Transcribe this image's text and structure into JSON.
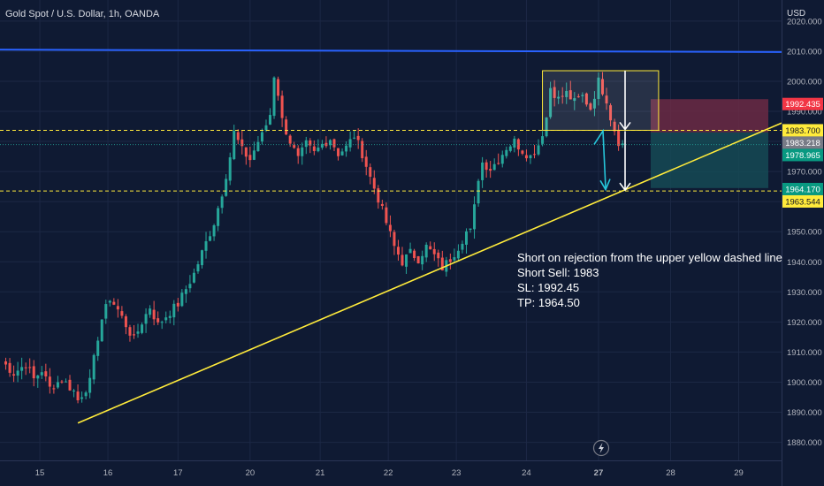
{
  "title": "Gold Spot / U.S. Dollar, 1h, OANDA",
  "currency": "USD",
  "colors": {
    "background": "#0f1a33",
    "grid": "#1c2845",
    "up_candle": "#26a69a",
    "down_candle": "#ef5350",
    "resistance_line": "#2962ff",
    "trend_line": "#ffeb3b",
    "dashed_line": "#ffeb3b",
    "arrow_white": "#ffffff",
    "arrow_teal": "#26c6da",
    "stop_zone": "#6b2a44",
    "target_zone": "#154a55",
    "axis_text": "#b2b5be"
  },
  "chart_data": {
    "type": "candlestick",
    "symbol": "Gold Spot / U.S. Dollar",
    "timeframe": "1h",
    "source": "OANDA",
    "ylim": [
      1874,
      2027
    ],
    "y_ticks": [
      1880,
      1890,
      1900,
      1910,
      1920,
      1930,
      1940,
      1950,
      1960,
      1970,
      1980,
      1990,
      2000,
      2010,
      2020
    ],
    "y_tick_labels": [
      "1880.000",
      "1890.000",
      "1900.000",
      "1910.000",
      "1920.000",
      "1930.000",
      "1940.000",
      "1950.000",
      "1960.000",
      "1970.000",
      "1980.000",
      "1990.000",
      "2000.000",
      "2010.000",
      "2020.000"
    ],
    "x_labels": [
      "15",
      "16",
      "17",
      "20",
      "21",
      "22",
      "23",
      "24",
      "27",
      "28",
      "29"
    ],
    "x_label_bold": "27",
    "close_path": [
      [
        0,
        1907
      ],
      [
        3,
        1903
      ],
      [
        6,
        1906
      ],
      [
        8,
        1901
      ],
      [
        10,
        1904
      ],
      [
        12,
        1898
      ],
      [
        15,
        1901
      ],
      [
        18,
        1897
      ],
      [
        19,
        1894
      ],
      [
        22,
        1900
      ],
      [
        24,
        1915
      ],
      [
        25,
        1921
      ],
      [
        27,
        1928
      ],
      [
        29,
        1924
      ],
      [
        31,
        1919
      ],
      [
        33,
        1914
      ],
      [
        35,
        1920
      ],
      [
        37,
        1925
      ],
      [
        39,
        1919
      ],
      [
        41,
        1922
      ],
      [
        44,
        1926
      ],
      [
        46,
        1931
      ],
      [
        48,
        1936
      ],
      [
        50,
        1943
      ],
      [
        53,
        1953
      ],
      [
        55,
        1963
      ],
      [
        57,
        1975
      ],
      [
        58,
        1983
      ],
      [
        60,
        1977
      ],
      [
        62,
        1974
      ],
      [
        64,
        1980
      ],
      [
        65,
        1982
      ],
      [
        67,
        1989
      ],
      [
        68,
        2002
      ],
      [
        69,
        1996
      ],
      [
        70,
        1987
      ],
      [
        72,
        1980
      ],
      [
        74,
        1974
      ],
      [
        76,
        1979
      ],
      [
        78,
        1976
      ],
      [
        80,
        1979
      ],
      [
        82,
        1981
      ],
      [
        84,
        1976
      ],
      [
        86,
        1978
      ],
      [
        88,
        1982
      ],
      [
        89,
        1979
      ],
      [
        90,
        1976
      ],
      [
        92,
        1968
      ],
      [
        94,
        1961
      ],
      [
        96,
        1953
      ],
      [
        98,
        1945
      ],
      [
        100,
        1940
      ],
      [
        102,
        1943
      ],
      [
        104,
        1941
      ],
      [
        106,
        1945
      ],
      [
        108,
        1942
      ],
      [
        110,
        1938
      ],
      [
        112,
        1941
      ],
      [
        114,
        1945
      ],
      [
        116,
        1950
      ],
      [
        117,
        1950
      ],
      [
        118,
        1958
      ],
      [
        119,
        1968
      ],
      [
        120,
        1973
      ],
      [
        122,
        1971
      ],
      [
        124,
        1974
      ],
      [
        126,
        1978
      ],
      [
        128,
        1980
      ],
      [
        130,
        1977
      ],
      [
        132,
        1975
      ],
      [
        134,
        1979
      ],
      [
        135,
        1983
      ],
      [
        136,
        1988
      ],
      [
        137,
        1998
      ],
      [
        139,
        1994
      ],
      [
        141,
        1996
      ],
      [
        143,
        1993
      ],
      [
        145,
        1995
      ],
      [
        147,
        1991
      ],
      [
        149,
        2000
      ],
      [
        151,
        1994
      ],
      [
        152,
        1988
      ],
      [
        153,
        1984
      ],
      [
        154,
        1980
      ],
      [
        155,
        1979
      ]
    ],
    "resistance_line": {
      "price_start": 2010.5,
      "price_end": 2009.7
    },
    "trend_line": {
      "from": {
        "bar": 19,
        "price": 1886.4
      },
      "to": {
        "bar": "right-edge",
        "price": 1986.1
      }
    },
    "dashed_lines": [
      1983.7,
      1963.544
    ],
    "price_labels": [
      {
        "value": "1992.435",
        "bg": "#f23645",
        "fg": "#ffffff",
        "price": 1992.435
      },
      {
        "value": "1983.700",
        "bg": "#ffeb3b",
        "fg": "#131722",
        "price": 1983.7
      },
      {
        "value": "1983.218",
        "bg": "#787b86",
        "fg": "#ffffff",
        "price": 1983.218
      },
      {
        "value": "1978.965",
        "bg": "#089981",
        "fg": "#ffffff",
        "price": 1978.965
      },
      {
        "value": "1964.170",
        "bg": "#089981",
        "fg": "#ffffff",
        "price": 1964.17
      },
      {
        "value": "1963.544",
        "bg": "#ffeb3b",
        "fg": "#131722",
        "price": 1963.544
      }
    ],
    "rejection_box": {
      "bar_start": 135,
      "bar_end": 164,
      "price_top": 2003.5,
      "price_bottom": 1983.7
    },
    "position": {
      "entry": 1983,
      "stop": 1992.45,
      "target": 1964.5
    },
    "annotation": [
      "Short on rejection from the upper yellow dashed line",
      "Short Sell: 1983",
      "SL: 1992.45",
      "TP: 1964.50"
    ]
  }
}
